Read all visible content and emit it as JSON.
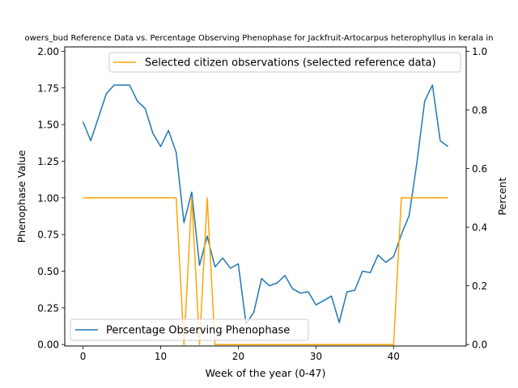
{
  "chart_data": {
    "type": "line",
    "title": "owers_bud Reference Data vs. Percentage Observing Phenophase for Jackfruit-Artocarpus heterophyllus in kerala in",
    "xlabel": "Week of the year (0-47)",
    "ylabel_left": "Phenophase Value",
    "ylabel_right": "Percent",
    "xlim": [
      -2.35,
      49.35
    ],
    "ylim_left": [
      -0.01,
      2.03
    ],
    "ylim_right": [
      -0.005,
      1.015
    ],
    "x_ticks": [
      0,
      10,
      20,
      30,
      40
    ],
    "x_tick_labels": [
      "0",
      "10",
      "20",
      "30",
      "40"
    ],
    "y_left_ticks": [
      0.0,
      0.25,
      0.5,
      0.75,
      1.0,
      1.25,
      1.5,
      1.75,
      2.0
    ],
    "y_left_tick_labels": [
      "0.00",
      "0.25",
      "0.50",
      "0.75",
      "1.00",
      "1.25",
      "1.50",
      "1.75",
      "2.00"
    ],
    "y_right_ticks": [
      0.0,
      0.2,
      0.4,
      0.6,
      0.8,
      1.0
    ],
    "y_right_tick_labels": [
      "0.0",
      "0.2",
      "0.4",
      "0.6",
      "0.8",
      "1.0"
    ],
    "legend_blue_position": "lower-left",
    "legend_orange_position": "upper-right",
    "series": [
      {
        "name": "Percentage Observing Phenophase",
        "axis": "left",
        "color": "#1f77b4",
        "x": [
          0,
          1,
          2,
          3,
          4,
          5,
          6,
          7,
          8,
          9,
          10,
          11,
          12,
          13,
          14,
          15,
          16,
          17,
          18,
          19,
          20,
          21,
          22,
          23,
          24,
          25,
          26,
          27,
          28,
          29,
          30,
          31,
          32,
          33,
          34,
          35,
          36,
          37,
          38,
          39,
          40,
          41,
          42,
          43,
          44,
          45,
          46,
          47
        ],
        "values": [
          1.52,
          1.39,
          1.55,
          1.71,
          1.77,
          1.77,
          1.77,
          1.66,
          1.61,
          1.44,
          1.35,
          1.46,
          1.31,
          0.83,
          1.04,
          0.54,
          0.74,
          0.53,
          0.59,
          0.52,
          0.55,
          0.14,
          0.22,
          0.45,
          0.4,
          0.42,
          0.47,
          0.38,
          0.35,
          0.36,
          0.27,
          0.3,
          0.33,
          0.15,
          0.36,
          0.37,
          0.5,
          0.49,
          0.61,
          0.56,
          0.6,
          0.75,
          0.88,
          1.24,
          1.66,
          1.77,
          1.39,
          1.35
        ]
      },
      {
        "name": "Selected citizen observations (selected reference data)",
        "axis": "right",
        "color": "#ffa500",
        "x": [
          0,
          1,
          2,
          3,
          4,
          5,
          6,
          7,
          8,
          9,
          10,
          11,
          12,
          13,
          14,
          15,
          16,
          17,
          18,
          19,
          20,
          21,
          22,
          23,
          24,
          25,
          26,
          27,
          28,
          29,
          30,
          31,
          32,
          33,
          34,
          35,
          36,
          37,
          38,
          39,
          40,
          41,
          42,
          43,
          44,
          45,
          46,
          47
        ],
        "values": [
          0.5,
          0.5,
          0.5,
          0.5,
          0.5,
          0.5,
          0.5,
          0.5,
          0.5,
          0.5,
          0.5,
          0.5,
          0.5,
          0,
          0.5,
          0,
          0.5,
          0,
          0,
          0,
          0,
          0,
          0,
          0,
          0,
          0,
          0,
          0,
          0,
          0,
          0,
          0,
          0,
          0,
          0,
          0,
          0,
          0,
          0,
          0,
          0,
          0.5,
          0.5,
          0.5,
          0.5,
          0.5,
          0.5,
          0.5
        ]
      }
    ]
  }
}
